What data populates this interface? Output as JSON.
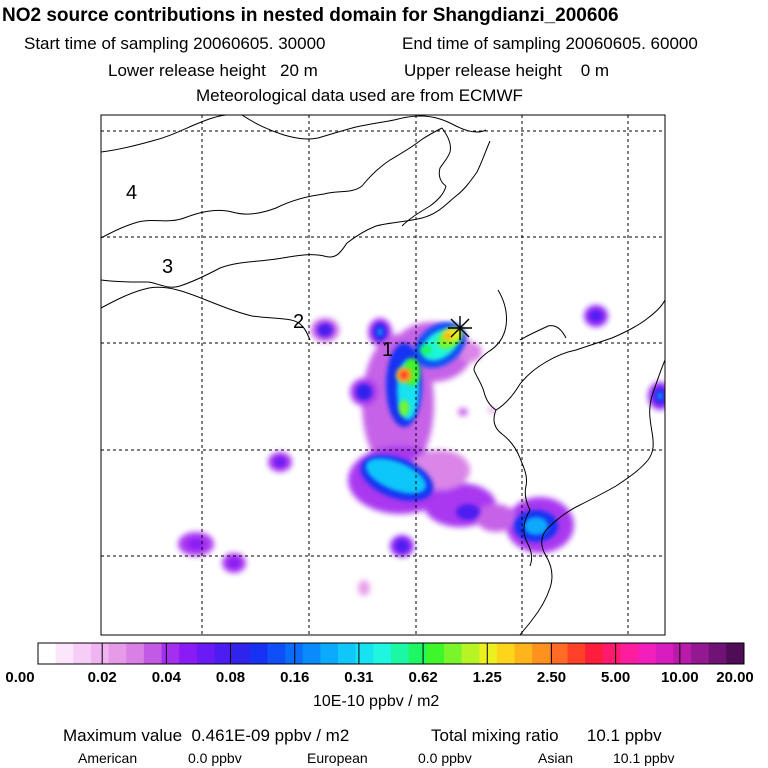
{
  "header": {
    "title": "NO2 source contributions in nested domain for Shangdianzi_200606",
    "start_time": "Start time of sampling 20060605. 30000",
    "end_time": "End time of sampling 20060605. 60000",
    "lower_height": "Lower release height   20 m",
    "upper_height": "Upper release height    0 m",
    "met_source": "Meteorological data used are from ECMWF"
  },
  "map": {
    "region_labels": [
      "4",
      "3",
      "2",
      "1"
    ],
    "receptor_marker": "star-icon",
    "colors": {
      "land_border": "#000000",
      "grid": "#000000"
    }
  },
  "colorbar": {
    "tick_labels": [
      "0.00",
      "0.02",
      "0.04",
      "0.08",
      "0.16",
      "0.31",
      "0.62",
      "1.25",
      "2.50",
      "5.00",
      "10.00",
      "20.00"
    ],
    "unit": "10E-10 ppbv / m2",
    "colors": [
      "#ffffff",
      "#fbe6fb",
      "#f6cdf6",
      "#f0b4f0",
      "#e69be9",
      "#d97fe6",
      "#c35ae6",
      "#a52ff0",
      "#8a1bf5",
      "#6a1af5",
      "#4d1cf0",
      "#2f23ec",
      "#1732f2",
      "#0f4ff7",
      "#0b6cf9",
      "#0b8bfb",
      "#0caafc",
      "#10c7fa",
      "#16e2f2",
      "#1ff6df",
      "#1cf7a4",
      "#1ef763",
      "#3ef72a",
      "#7af52a",
      "#b7f425",
      "#ecf01e",
      "#ffd51b",
      "#ffb41b",
      "#ff911f",
      "#ff6a24",
      "#ff4129",
      "#ff1d3c",
      "#ff1a6e",
      "#ff1d9f",
      "#f31fbc",
      "#d91cbd",
      "#b91aa9",
      "#941891",
      "#701276",
      "#4f0c57"
    ]
  },
  "footer": {
    "max_value": "Maximum value  0.461E-09 ppbv / m2",
    "total": "Total mixing ratio      10.1 ppbv",
    "regions": [
      {
        "name": "American",
        "value": "0.0 ppbv"
      },
      {
        "name": "European",
        "value": "0.0 ppbv"
      },
      {
        "name": "Asian",
        "value": "10.1 ppbv"
      }
    ]
  }
}
